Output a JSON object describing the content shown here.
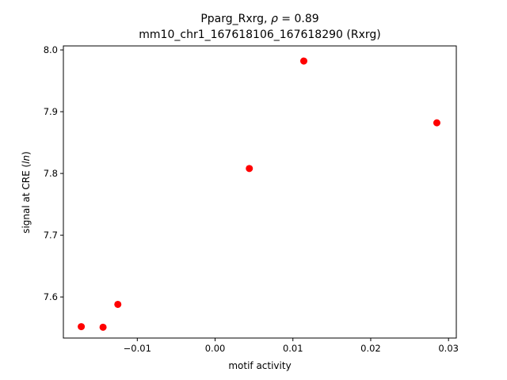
{
  "chart_data": {
    "type": "scatter",
    "title_lines": [
      "Pparg_Rxrg, ρ = 0.89",
      "mm10_chr1_167618106_167618290 (Rxrg)"
    ],
    "xlabel": "motif activity",
    "ylabel": "signal at CRE (ln)",
    "xlim": [
      -0.0195,
      0.031
    ],
    "ylim": [
      7.5335,
      8.0065
    ],
    "xticks": [
      -0.01,
      0.0,
      0.01,
      0.02,
      0.03
    ],
    "xtick_labels": [
      "−0.01",
      "0.00",
      "0.01",
      "0.02",
      "0.03"
    ],
    "yticks": [
      7.6,
      7.7,
      7.8,
      7.9,
      8.0
    ],
    "ytick_labels": [
      "7.6",
      "7.7",
      "7.8",
      "7.9",
      "8.0"
    ],
    "points": [
      {
        "x": -0.0172,
        "y": 7.552
      },
      {
        "x": -0.0144,
        "y": 7.551
      },
      {
        "x": -0.0125,
        "y": 7.588
      },
      {
        "x": 0.0044,
        "y": 7.808
      },
      {
        "x": 0.0114,
        "y": 7.982
      },
      {
        "x": 0.0285,
        "y": 7.882
      }
    ],
    "marker_color": "#ff0000",
    "grid": false,
    "legend": "none"
  }
}
